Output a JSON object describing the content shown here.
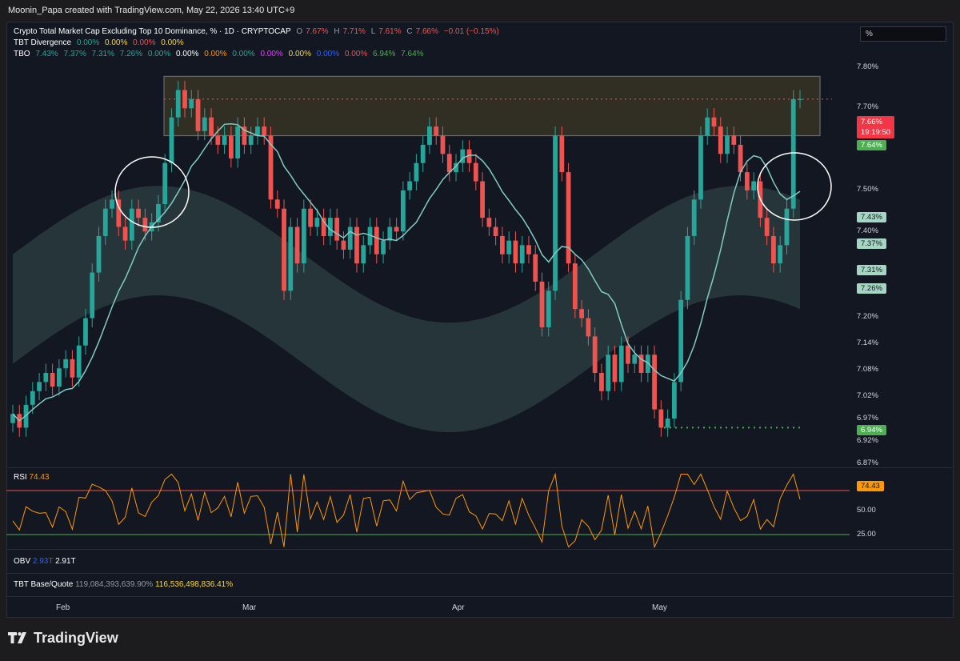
{
  "credit": "Moonin_Papa created with TradingView.com, May 22, 2026 13:40 UTC+9",
  "legend": {
    "title": "Crypto Total Market Cap Excluding Top 10 Dominance, % · 1D · CRYPTOCAP",
    "ohlc": {
      "o": "7.67%",
      "h": "7.71%",
      "l": "7.61%",
      "c": "7.66%",
      "chg": "−0.01 (−0.15%)"
    },
    "divergence": {
      "name": "TBT Divergence",
      "v1": "0.00%",
      "v2": "0.00%",
      "v3": "0.00%",
      "v4": "0.00%"
    },
    "tbo": {
      "name": "TBO",
      "values": [
        "7.43%",
        "7.37%",
        "7.31%",
        "7.26%",
        "0.00%",
        "0.00%",
        "0.00%",
        "0.00%",
        "0.00%",
        "0.00%",
        "0.00%",
        "0.00%",
        "6.94%",
        "7.64%"
      ]
    }
  },
  "scale_mode": "%",
  "price_axis": [
    "7.80%",
    "7.70%",
    "7.50%",
    "7.40%",
    "7.20%",
    "7.14%",
    "7.08%",
    "7.02%",
    "6.97%",
    "6.92%",
    "6.87%"
  ],
  "price_tags": {
    "last": "7.66%",
    "countdown": "19:19:50",
    "t1": "7.64%",
    "t2": "7.43%",
    "t3": "7.37%",
    "t4": "7.31%",
    "t5": "7.26%",
    "t6": "6.94%"
  },
  "rsi": {
    "label": "RSI",
    "value": "74.43",
    "axis": [
      "50.00",
      "25.00"
    ]
  },
  "obv": {
    "label": "OBV",
    "v1": "2.93T",
    "v2": "2.91T"
  },
  "base_quote": {
    "label": "TBT Base/Quote",
    "v1": "119,084,393,639.90%",
    "v2": "116,536,498,836.41%"
  },
  "x_axis": [
    "Feb",
    "Mar",
    "Apr",
    "May"
  ],
  "footer": "TradingView",
  "colors": {
    "up": "#26a69a",
    "down": "#ef5350",
    "background": "#131722",
    "rsi": "#ff9800"
  },
  "chart_data": {
    "type": "candlestick",
    "title": "Crypto Total Market Cap Excluding Top 10 Dominance, %",
    "ylim": [
      6.86,
      7.83
    ],
    "ylabel": "%",
    "x_ticks": [
      "Feb",
      "Mar",
      "Apr",
      "May"
    ],
    "close": [
      6.97,
      6.94,
      6.99,
      7.02,
      7.04,
      7.06,
      7.03,
      7.07,
      7.09,
      7.05,
      7.12,
      7.18,
      7.28,
      7.36,
      7.42,
      7.44,
      7.38,
      7.35,
      7.42,
      7.4,
      7.37,
      7.39,
      7.43,
      7.52,
      7.62,
      7.68,
      7.64,
      7.66,
      7.59,
      7.62,
      7.58,
      7.56,
      7.58,
      7.53,
      7.6,
      7.56,
      7.58,
      7.6,
      7.58,
      7.44,
      7.42,
      7.24,
      7.38,
      7.3,
      7.42,
      7.38,
      7.4,
      7.36,
      7.4,
      7.35,
      7.33,
      7.38,
      7.3,
      7.34,
      7.38,
      7.32,
      7.35,
      7.38,
      7.37,
      7.46,
      7.48,
      7.52,
      7.56,
      7.6,
      7.58,
      7.54,
      7.5,
      7.52,
      7.55,
      7.52,
      7.48,
      7.4,
      7.38,
      7.36,
      7.32,
      7.35,
      7.3,
      7.34,
      7.32,
      7.26,
      7.16,
      7.24,
      7.58,
      7.5,
      7.3,
      7.2,
      7.18,
      7.14,
      7.06,
      7.02,
      7.1,
      7.04,
      7.12,
      7.08,
      7.1,
      7.06,
      7.1,
      6.98,
      6.94,
      6.96,
      7.04,
      7.22,
      7.36,
      7.44,
      7.58,
      7.62,
      7.6,
      7.54,
      7.58,
      7.56,
      7.5,
      7.46,
      7.48,
      7.4,
      7.36,
      7.3,
      7.34,
      7.42,
      7.66,
      7.66
    ],
    "annotations": [
      "resistance zone box 7.58%–7.71%",
      "circle left",
      "circle right"
    ]
  }
}
